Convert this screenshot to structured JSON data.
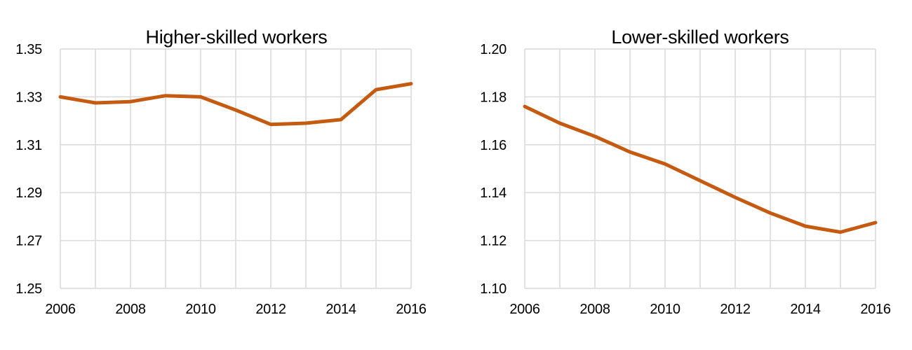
{
  "figure": {
    "background": "#FFFFFF"
  },
  "colors": {
    "line": "#C55A11",
    "grid": "#D9D9D9",
    "text": "#000000"
  },
  "chart_data": [
    {
      "type": "line",
      "title": "Higher-skilled workers",
      "x": [
        2006,
        2007,
        2008,
        2009,
        2010,
        2011,
        2012,
        2013,
        2014,
        2015,
        2016
      ],
      "series": [
        {
          "name": "Higher-skilled workers",
          "values": [
            1.33,
            1.3275,
            1.328,
            1.3305,
            1.33,
            1.3245,
            1.3185,
            1.319,
            1.3205,
            1.333,
            1.3355
          ]
        }
      ],
      "xlabel": "",
      "ylabel": "",
      "xlim": [
        2006,
        2016
      ],
      "ylim": [
        1.25,
        1.35
      ],
      "y_ticks": [
        1.25,
        1.27,
        1.29,
        1.31,
        1.33,
        1.35
      ],
      "y_tick_labels": [
        "1.25",
        "1.27",
        "1.29",
        "1.31",
        "1.33",
        "1.35"
      ],
      "x_ticks": [
        2006,
        2008,
        2010,
        2012,
        2014,
        2016
      ],
      "x_tick_labels": [
        "2006",
        "2008",
        "2010",
        "2012",
        "2014",
        "2016"
      ],
      "grid": true,
      "legend": "none",
      "line_color": "#C55A11"
    },
    {
      "type": "line",
      "title": "Lower-skilled workers",
      "x": [
        2006,
        2007,
        2008,
        2009,
        2010,
        2011,
        2012,
        2013,
        2014,
        2015,
        2016
      ],
      "series": [
        {
          "name": "Lower-skilled workers",
          "values": [
            1.176,
            1.169,
            1.1635,
            1.157,
            1.152,
            1.145,
            1.138,
            1.1315,
            1.126,
            1.1235,
            1.1275
          ]
        }
      ],
      "xlabel": "",
      "ylabel": "",
      "xlim": [
        2006,
        2016
      ],
      "ylim": [
        1.1,
        1.2
      ],
      "y_ticks": [
        1.1,
        1.12,
        1.14,
        1.16,
        1.18,
        1.2
      ],
      "y_tick_labels": [
        "1.10",
        "1.12",
        "1.14",
        "1.16",
        "1.18",
        "1.20"
      ],
      "x_ticks": [
        2006,
        2008,
        2010,
        2012,
        2014,
        2016
      ],
      "x_tick_labels": [
        "2006",
        "2008",
        "2010",
        "2012",
        "2014",
        "2016"
      ],
      "grid": true,
      "legend": "none",
      "line_color": "#C55A11"
    }
  ]
}
